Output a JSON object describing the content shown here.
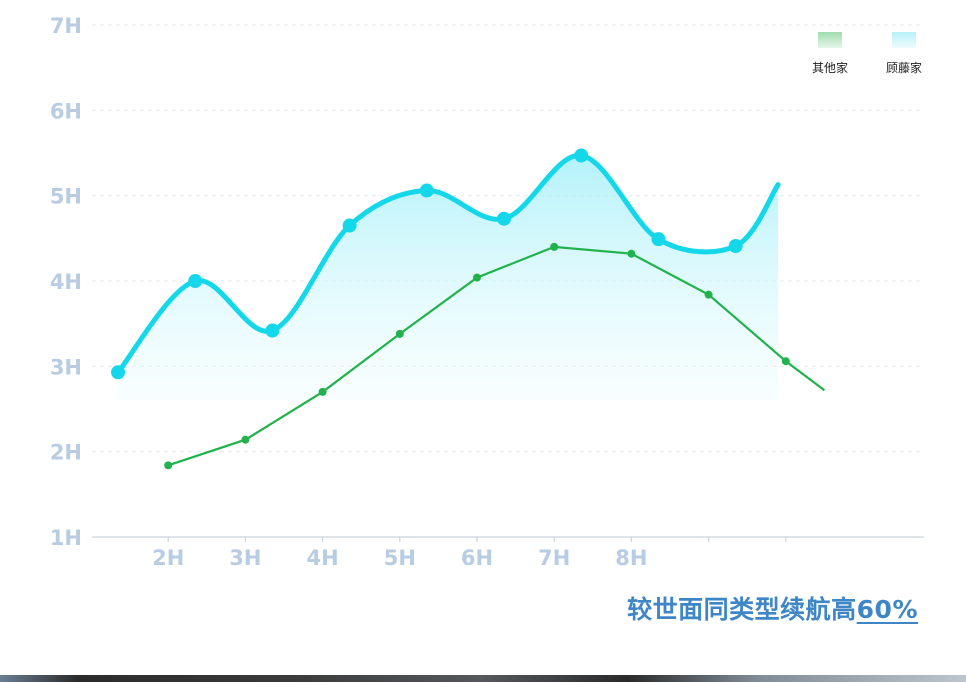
{
  "chart_data": {
    "type": "line",
    "title": "",
    "xlabel": "",
    "ylabel": "",
    "ylim": [
      1,
      7
    ],
    "y_ticks": [
      "1H",
      "2H",
      "3H",
      "4H",
      "5H",
      "6H",
      "7H"
    ],
    "x_ticks": [
      "2H",
      "3H",
      "4H",
      "5H",
      "6H",
      "7H",
      "8H"
    ],
    "grid": "horizontal dashed",
    "legend_position": "top-right",
    "series": [
      {
        "name": "其他家",
        "color": "#22b24c",
        "style": "straight line with dot markers",
        "x": [
          2,
          3,
          4,
          5,
          6,
          7,
          8,
          9,
          10,
          10.5
        ],
        "y": [
          1.84,
          2.14,
          2.7,
          3.38,
          4.04,
          4.4,
          4.32,
          3.84,
          3.06,
          2.72
        ]
      },
      {
        "name": "顾藤家",
        "color": "#14d8ea",
        "fill": "gradient area",
        "style": "smooth curve with dot markers",
        "x": [
          1.35,
          2.35,
          3.35,
          4.35,
          5.35,
          6.35,
          7.35,
          8.35,
          9.35,
          9.9
        ],
        "y": [
          2.93,
          4.0,
          3.42,
          4.65,
          5.06,
          4.73,
          5.47,
          4.49,
          4.41,
          5.13
        ]
      }
    ]
  },
  "caption": {
    "text": "较世面同类型续航高",
    "highlight": "60%"
  }
}
